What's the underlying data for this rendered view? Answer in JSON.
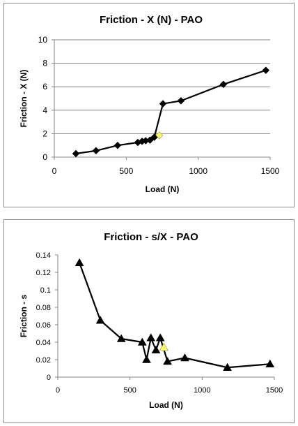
{
  "chart_data": [
    {
      "type": "line",
      "title": "Friction - X (N) - PAO",
      "xlabel": "Load (N)",
      "ylabel": "Friction - X (N)",
      "xlim": [
        0,
        1500
      ],
      "ylim": [
        0,
        10
      ],
      "xticks": [
        "0",
        "500",
        "1000",
        "1500"
      ],
      "yticks": [
        "0",
        "2",
        "4",
        "6",
        "8",
        "10"
      ],
      "grid": "horizontal",
      "legend": "none",
      "marker": "diamond",
      "series": [
        {
          "x": [
            150,
            290,
            440,
            580,
            610,
            635,
            665,
            695,
            755,
            880,
            1175,
            1470
          ],
          "y": [
            0.3,
            0.55,
            1.0,
            1.25,
            1.35,
            1.4,
            1.45,
            1.7,
            4.55,
            4.8,
            6.2,
            7.4
          ]
        }
      ],
      "highlight": {
        "x": 730,
        "y": 1.85,
        "color": "#FFFF66"
      },
      "colors": {
        "line": "#000000",
        "grid": "#868686"
      }
    },
    {
      "type": "line",
      "title": "Friction - s/X - PAO",
      "xlabel": "Load (N)",
      "ylabel": "Friction - s",
      "xlim": [
        0,
        1500
      ],
      "ylim": [
        0,
        0.14
      ],
      "xticks": [
        "0",
        "500",
        "1000",
        "1500"
      ],
      "yticks": [
        "0",
        "0.02",
        "0.04",
        "0.06",
        "0.08",
        "0.1",
        "0.12",
        "0.14"
      ],
      "grid": "none",
      "legend": "none",
      "marker": "triangle",
      "series": [
        {
          "x": [
            150,
            295,
            440,
            585,
            615,
            645,
            680,
            710,
            760,
            880,
            1175,
            1470
          ],
          "y": [
            0.131,
            0.065,
            0.044,
            0.04,
            0.02,
            0.045,
            0.031,
            0.045,
            0.018,
            0.022,
            0.011,
            0.015
          ]
        }
      ],
      "highlight": {
        "x": 735,
        "y": 0.034,
        "color": "#FFFF66"
      },
      "colors": {
        "line": "#000000"
      }
    }
  ]
}
